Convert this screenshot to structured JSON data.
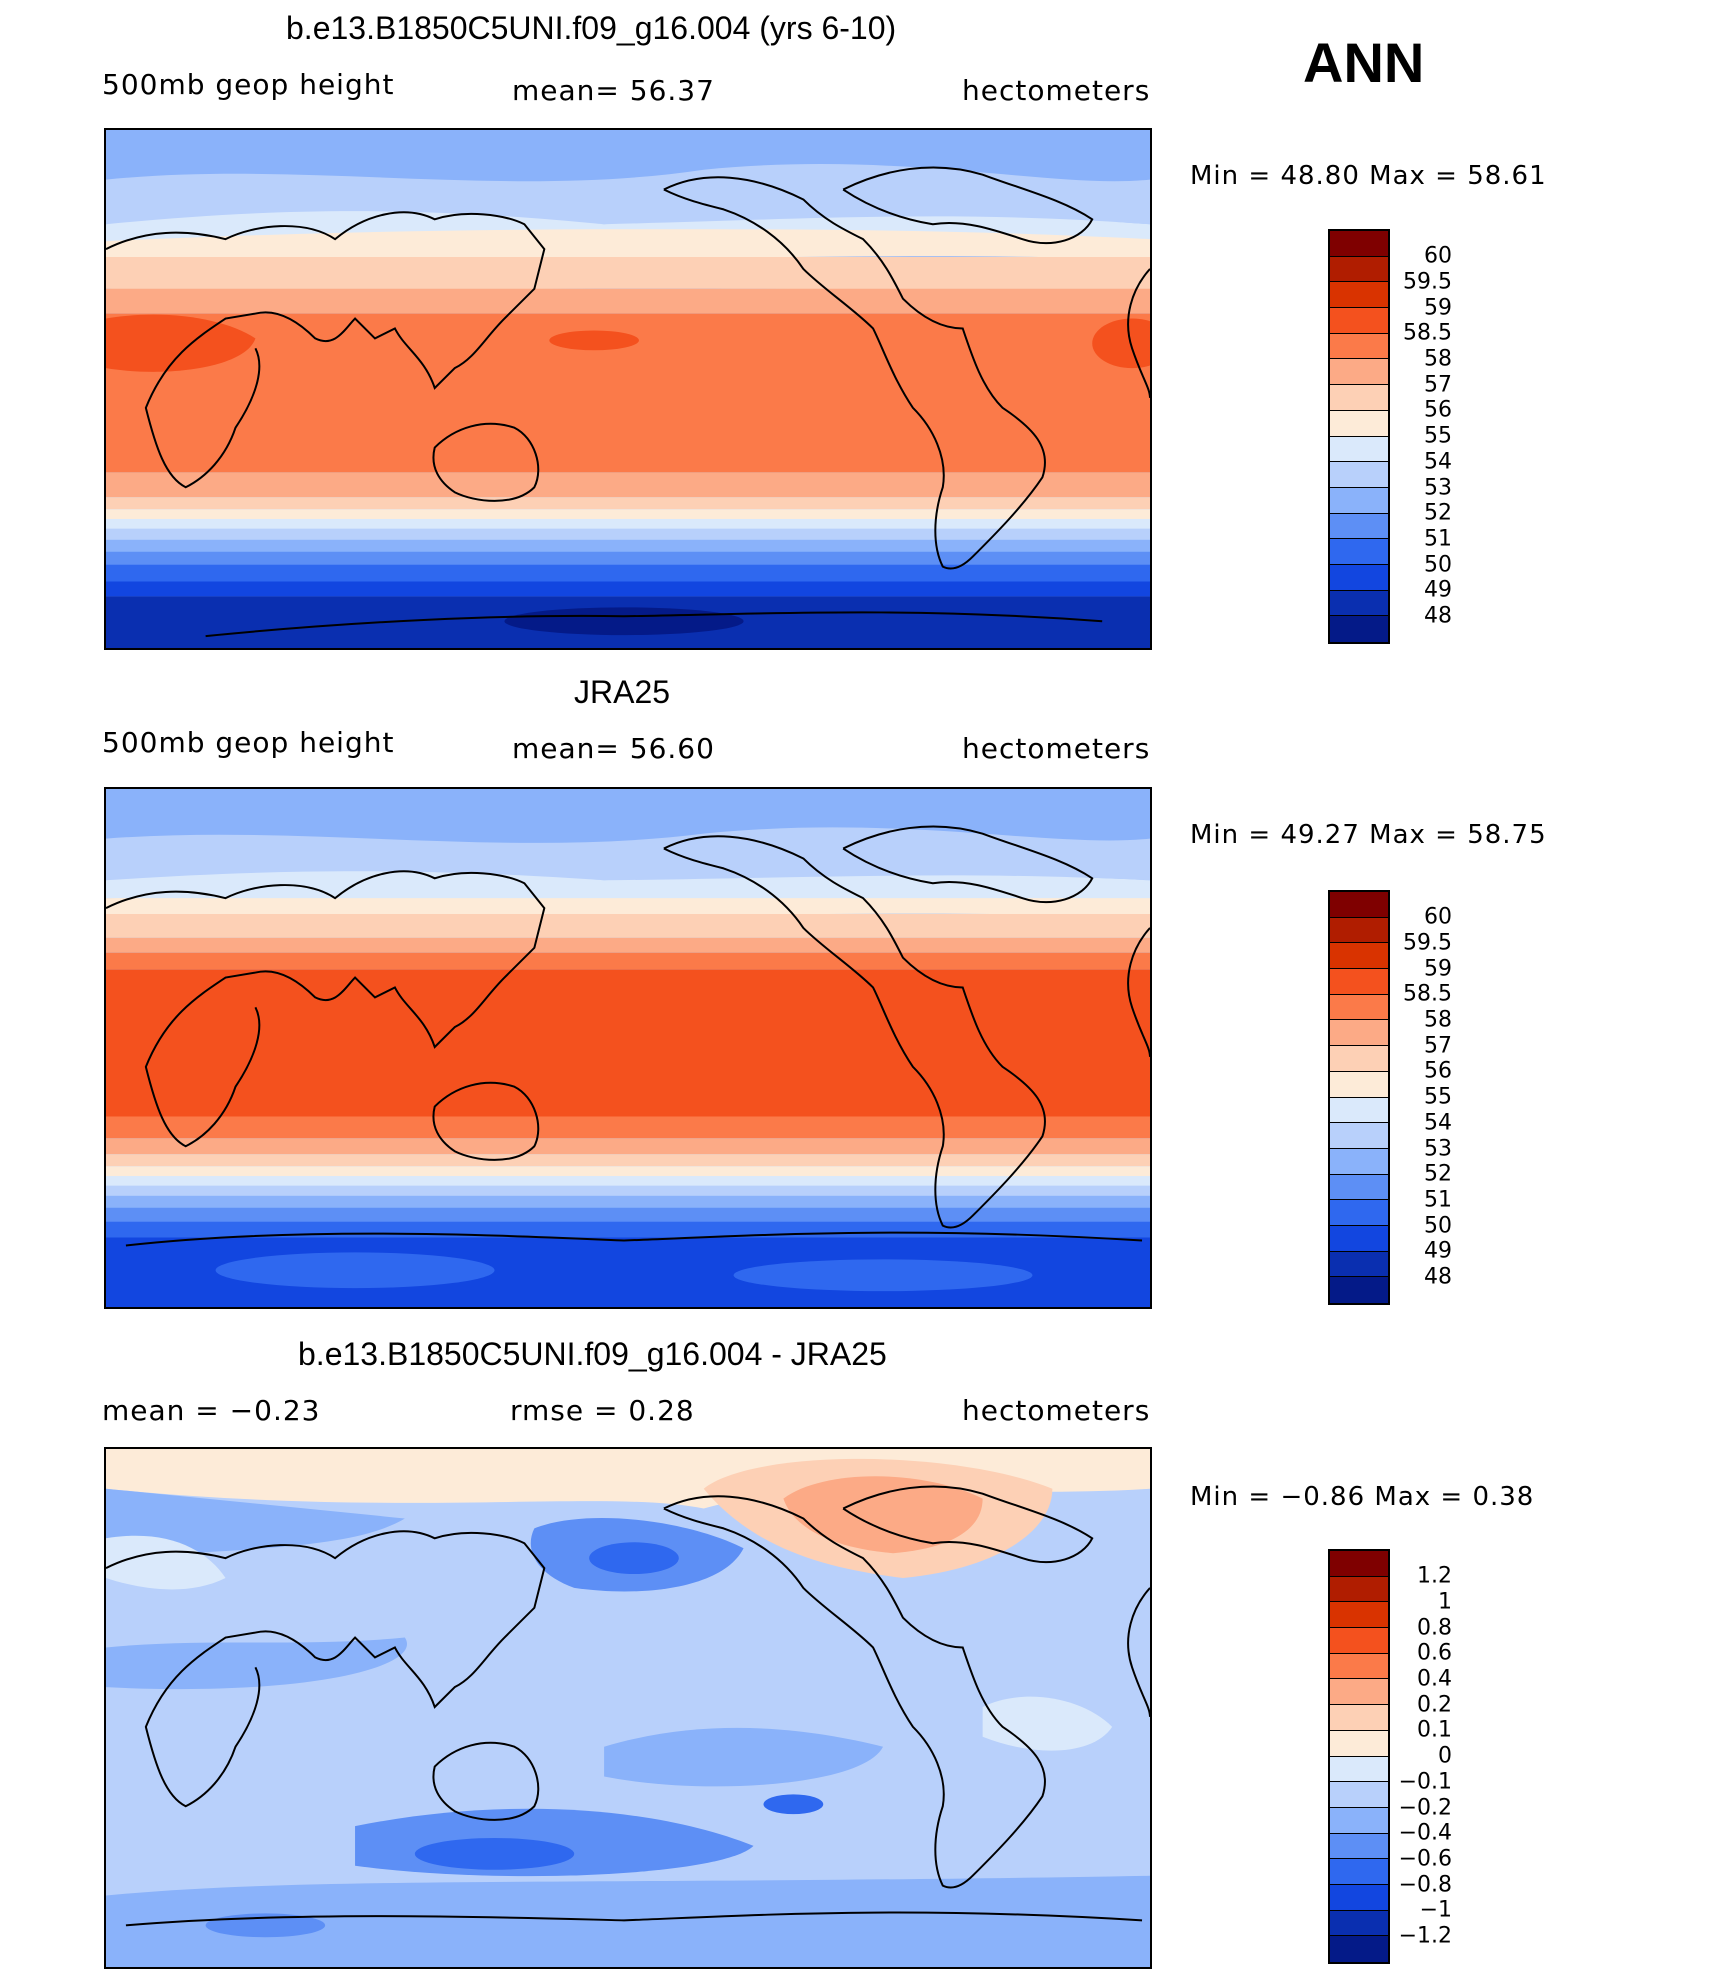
{
  "season": "ANN",
  "panels": [
    {
      "title": "b.e13.B1850C5UNI.f09_g16.004 (yrs 6-10)",
      "left_label": "500mb  geop  height",
      "center_label": "mean=   56.37",
      "right_label": "hectometers",
      "minmax": "Min  =    48.80  Max  =    58.61",
      "legend_labels": [
        "60",
        "59.5",
        "59",
        "58.5",
        "58",
        "57",
        "56",
        "55",
        "54",
        "53",
        "52",
        "51",
        "50",
        "49",
        "48"
      ]
    },
    {
      "title": "JRA25",
      "left_label": "500mb  geop  height",
      "center_label": "mean=   56.60",
      "right_label": "hectometers",
      "minmax": "Min  =    49.27  Max  =    58.75",
      "legend_labels": [
        "60",
        "59.5",
        "59",
        "58.5",
        "58",
        "57",
        "56",
        "55",
        "54",
        "53",
        "52",
        "51",
        "50",
        "49",
        "48"
      ]
    },
    {
      "title": "b.e13.B1850C5UNI.f09_g16.004 - JRA25",
      "left_label": "mean  =    −0.23",
      "center_label": "rmse  =     0.28",
      "right_label": "hectometers",
      "minmax": "Min  =    −0.86  Max  =      0.38",
      "legend_labels": [
        "1.2",
        "1",
        "0.8",
        "0.6",
        "0.4",
        "0.2",
        "0.1",
        "0",
        "−0.1",
        "−0.2",
        "−0.4",
        "−0.6",
        "−0.8",
        "−1",
        "−1.2"
      ]
    }
  ],
  "colors": {
    "scale": [
      "#7f0000",
      "#b01d00",
      "#d93300",
      "#f4511e",
      "#fb7a49",
      "#fcaa86",
      "#fdd0b5",
      "#fdebd8",
      "#dae9fb",
      "#b8d0fb",
      "#8ab2fa",
      "#5d8ff5",
      "#2f68ef",
      "#1246e0",
      "#0a2fb0",
      "#041a88"
    ],
    "land_line": "#000000"
  }
}
